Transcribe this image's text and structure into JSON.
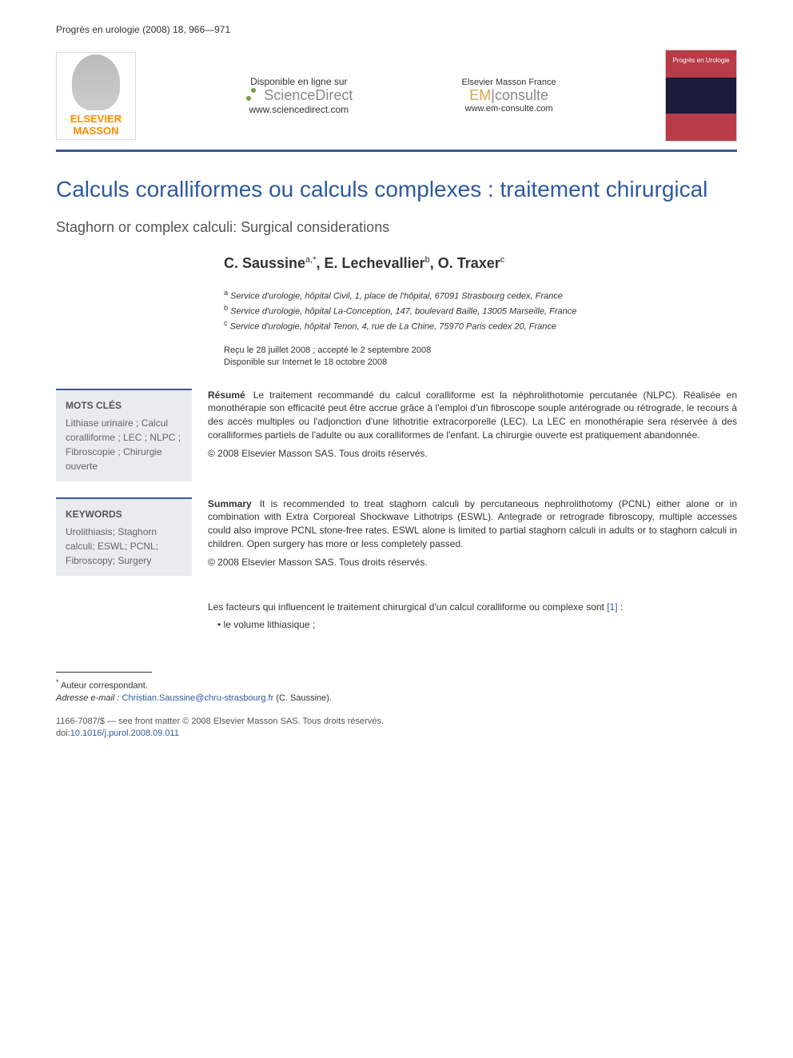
{
  "journal_ref": "Progrès en urologie (2008) 18, 966—971",
  "header": {
    "elsevier": "ELSEVIER MASSON",
    "sciencedirect": {
      "available": "Disponible en ligne sur",
      "name": "ScienceDirect",
      "url": "www.sciencedirect.com"
    },
    "emconsulte": {
      "brand": "Elsevier Masson France",
      "em": "EM",
      "consulte": "consulte",
      "url": "www.em-consulte.com"
    },
    "cover_title": "Progrès en Urologie"
  },
  "title": "Calculs coralliformes ou calculs complexes : traitement chirurgical",
  "subtitle": "Staghorn or complex calculi: Surgical considerations",
  "authors_html": "C. Saussine",
  "author1": "C. Saussine",
  "author1_sup": "a,*",
  "author2": "E. Lechevallier",
  "author2_sup": "b",
  "author3": "O. Traxer",
  "author3_sup": "c",
  "affiliations": {
    "a_sup": "a",
    "a": "Service d'urologie, hôpital Civil, 1, place de l'hôpital, 67091 Strasbourg cedex, France",
    "b_sup": "b",
    "b": "Service d'urologie, hôpital La-Conception, 147, boulevard Baille, 13005 Marseille, France",
    "c_sup": "c",
    "c": "Service d'urologie, hôpital Tenon, 4, rue de La Chine, 75970 Paris cedex 20, France"
  },
  "dates": {
    "received": "Reçu le 28 juillet 2008 ; accepté le 2 septembre 2008",
    "online": "Disponible sur Internet le 18 octobre 2008"
  },
  "mots_cles": {
    "title": "MOTS CLÉS",
    "list": "Lithiase urinaire ; Calcul coralliforme ; LEC ; NLPC ; Fibroscopie ; Chirurgie ouverte"
  },
  "resume": {
    "label": "Résumé",
    "text": "Le traitement recommandé du calcul coralliforme est la néphrolithotomie percutanée (NLPC). Réalisée en monothérapie son efficacité peut être accrue grâce à l'emploi d'un fibroscope souple antérograde ou rétrograde, le recours à des accès multiples ou l'adjonction d'une lithotritie extracorporelle (LEC). La LEC en monothérapie sera réservée à des coralliformes partiels de l'adulte ou aux coralliformes de l'enfant. La chirurgie ouverte est pratiquement abandonnée.",
    "copyright": "© 2008 Elsevier Masson SAS. Tous droits réservés."
  },
  "keywords": {
    "title": "KEYWORDS",
    "list": "Urolithiasis; Staghorn calculi; ESWL; PCNL; Fibroscopy; Surgery"
  },
  "summary": {
    "label": "Summary",
    "text": "It is recommended to treat staghorn calculi by percutaneous nephrolithotomy (PCNL) either alone or in combination with Extra Corporeal Shockwave Lithotrips (ESWL). Antegrade or retrograde fibroscopy, multiple accesses could also improve PCNL stone-free rates. ESWL alone is limited to partial staghorn calculi in adults or to staghorn calculi in children. Open surgery has more or less completely passed.",
    "copyright": "© 2008 Elsevier Masson SAS. Tous droits réservés."
  },
  "body": {
    "intro": "Les facteurs qui influencent le traitement chirurgical d'un calcul coralliforme ou complexe sont ",
    "ref": "[1]",
    "colon": " :",
    "bullet1": "le volume lithiasique ;"
  },
  "footnotes": {
    "corr_mark": "*",
    "corr_text": "Auteur correspondant.",
    "email_label": "Adresse e-mail :",
    "email": "Christian.Saussine@chru-strasbourg.fr",
    "email_suffix": " (C. Saussine)."
  },
  "bottom": {
    "front": "1166-7087/$ — see front matter © 2008 Elsevier Masson SAS. Tous droits réservés.",
    "doi_label": "doi:",
    "doi": "10.1016/j.purol.2008.09.011"
  },
  "colors": {
    "title_color": "#2c5aa0",
    "accent_blue": "#3b5998",
    "keywords_bg": "#e8ecef",
    "link_color": "#2c5aa0",
    "elsevier_orange": "#ff8c00"
  }
}
